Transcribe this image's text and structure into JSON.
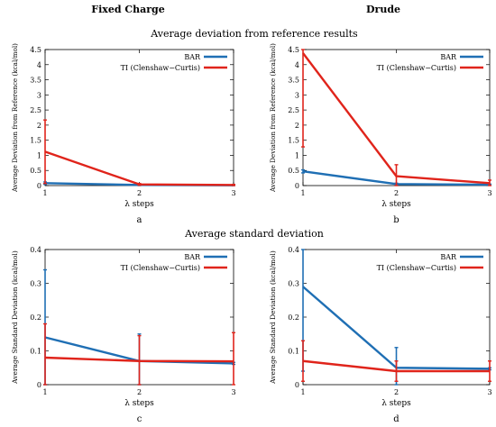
{
  "figure": {
    "col_titles": [
      "Fixed Charge",
      "Drude"
    ],
    "row_titles": [
      "Average deviation from reference results",
      "Average standard deviation"
    ],
    "colors": {
      "BAR": "#1f6fb4",
      "TI": "#e0241b"
    }
  },
  "chart_data": [
    {
      "type": "line",
      "panel_label": "a",
      "xlabel": "λ steps",
      "ylabel": "Average Deviation from Reference (kcal/mol)",
      "x": [
        1,
        2,
        3
      ],
      "xlim": [
        1,
        3
      ],
      "xticks": [
        "1",
        "2",
        "3"
      ],
      "ylim": [
        0,
        4.5
      ],
      "yticks": [
        "0",
        "0.5",
        "1",
        "1.5",
        "2",
        "2.5",
        "3",
        "3.5",
        "4",
        "4.5"
      ],
      "grid": false,
      "legend": "top-right",
      "series": [
        {
          "name": "BAR",
          "color": "#1f6fb4",
          "values": [
            0.08,
            0.02,
            0.01
          ],
          "errors": [
            0.04,
            0.02,
            0.01
          ]
        },
        {
          "name": "TI (Clenshaw−Curtis)",
          "color": "#e0241b",
          "values": [
            1.12,
            0.04,
            0.02
          ],
          "errors": [
            1.05,
            0.03,
            0.02
          ]
        }
      ]
    },
    {
      "type": "line",
      "panel_label": "b",
      "xlabel": "λ steps",
      "ylabel": "Average Deviation from Reference (kcal/mol)",
      "x": [
        1,
        2,
        3
      ],
      "xlim": [
        1,
        3
      ],
      "xticks": [
        "1",
        "2",
        "3"
      ],
      "ylim": [
        0,
        4.5
      ],
      "yticks": [
        "0",
        "0.5",
        "1",
        "1.5",
        "2",
        "2.5",
        "3",
        "3.5",
        "4",
        "4.5"
      ],
      "grid": false,
      "legend": "top-right",
      "series": [
        {
          "name": "BAR",
          "color": "#1f6fb4",
          "values": [
            0.47,
            0.05,
            0.03
          ],
          "errors": [
            0.05,
            0.03,
            0.02
          ]
        },
        {
          "name": "TI (Clenshaw−Curtis)",
          "color": "#e0241b",
          "values": [
            4.38,
            0.31,
            0.08
          ],
          "errors": [
            3.1,
            0.38,
            0.1
          ]
        }
      ]
    },
    {
      "type": "line",
      "panel_label": "c",
      "xlabel": "λ steps",
      "ylabel": "Average Standard Deviation (kcal/mol)",
      "x": [
        1,
        2,
        3
      ],
      "xlim": [
        1,
        3
      ],
      "xticks": [
        "1",
        "2",
        "3"
      ],
      "ylim": [
        0,
        0.4
      ],
      "yticks": [
        "0",
        "0.1",
        "0.2",
        "0.3",
        "0.4"
      ],
      "grid": false,
      "legend": "top-right",
      "series": [
        {
          "name": "BAR",
          "color": "#1f6fb4",
          "values": [
            0.14,
            0.07,
            0.063
          ],
          "errors": [
            0.2,
            0.08,
            0.003
          ]
        },
        {
          "name": "TI (Clenshaw−Curtis)",
          "color": "#e0241b",
          "values": [
            0.08,
            0.07,
            0.069
          ],
          "errors": [
            0.1,
            0.075,
            0.085
          ]
        }
      ]
    },
    {
      "type": "line",
      "panel_label": "d",
      "xlabel": "λ steps",
      "ylabel": "Average Standard Deviation (kcal/mol)",
      "x": [
        1,
        2,
        3
      ],
      "xlim": [
        1,
        3
      ],
      "xticks": [
        "1",
        "2",
        "3"
      ],
      "ylim": [
        0,
        0.4
      ],
      "yticks": [
        "0",
        "0.1",
        "0.2",
        "0.3",
        "0.4"
      ],
      "grid": false,
      "legend": "top-right",
      "series": [
        {
          "name": "BAR",
          "color": "#1f6fb4",
          "values": [
            0.29,
            0.05,
            0.047
          ],
          "errors": [
            0.25,
            0.06,
            0.003
          ]
        },
        {
          "name": "TI (Clenshaw−Curtis)",
          "color": "#e0241b",
          "values": [
            0.07,
            0.04,
            0.04
          ],
          "errors": [
            0.06,
            0.03,
            0.03
          ]
        }
      ]
    }
  ]
}
